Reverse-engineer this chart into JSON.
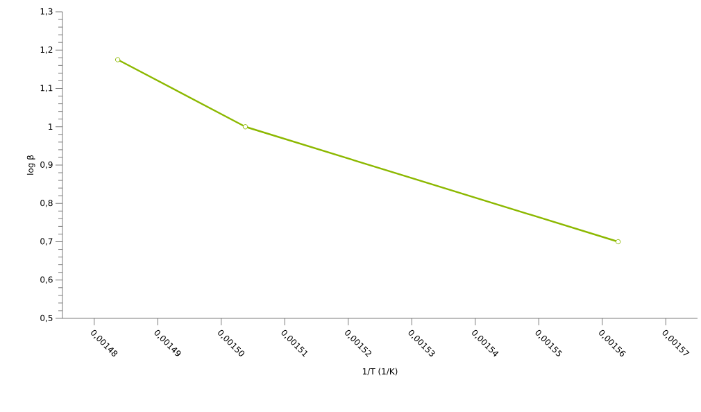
{
  "chart_data": {
    "type": "line",
    "xlabel": "1/T (1/K)",
    "ylabel": "log β",
    "x": [
      0.0014837,
      0.0015038,
      0.0015625
    ],
    "series": [
      {
        "color": "#8cb800",
        "values": [
          1.175,
          1.0,
          0.7
        ]
      }
    ],
    "xlim": [
      0.001475,
      0.001575
    ],
    "ylim": [
      0.5,
      1.3
    ],
    "xticks": [
      {
        "value": 0.00148,
        "label": "0,00148"
      },
      {
        "value": 0.00149,
        "label": "0,00149"
      },
      {
        "value": 0.0015,
        "label": "0,00150"
      },
      {
        "value": 0.00151,
        "label": "0,00151"
      },
      {
        "value": 0.00152,
        "label": "0,00152"
      },
      {
        "value": 0.00153,
        "label": "0,00153"
      },
      {
        "value": 0.00154,
        "label": "0,00154"
      },
      {
        "value": 0.00155,
        "label": "0,00155"
      },
      {
        "value": 0.00156,
        "label": "0,00156"
      },
      {
        "value": 0.00157,
        "label": "0,00157"
      }
    ],
    "yticks": [
      {
        "value": 0.5,
        "label": "0,5"
      },
      {
        "value": 0.6,
        "label": "0,6"
      },
      {
        "value": 0.7,
        "label": "0,7"
      },
      {
        "value": 0.8,
        "label": "0,8"
      },
      {
        "value": 0.9,
        "label": "0,9"
      },
      {
        "value": 1,
        "label": "1"
      },
      {
        "value": 1.1,
        "label": "1,1"
      },
      {
        "value": 1.2,
        "label": "1,2"
      },
      {
        "value": 1.3,
        "label": "1,3"
      }
    ],
    "grid": false,
    "marker": "circle",
    "line_style": "solid"
  }
}
